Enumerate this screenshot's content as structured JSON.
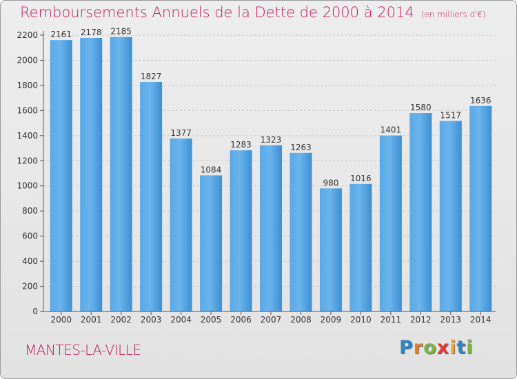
{
  "title": "Remboursements Annuels de la Dette de 2000 à 2014",
  "subtitle": "(en milliers d'€)",
  "city": "MANTES-LA-VILLE",
  "logo": {
    "letters": [
      "P",
      "r",
      "o",
      "x",
      "i",
      "t",
      "i"
    ],
    "colors": [
      "#2e86c1",
      "#e67e22",
      "#7cb342",
      "#e53935",
      "#f9a825",
      "#2e86c1",
      "#7cb342"
    ]
  },
  "colors": {
    "bar": "#3f92d6",
    "bar_light": "#6cb3ea",
    "title": "#c2185b",
    "grid": "#c8c8c8"
  },
  "chart_data": {
    "type": "bar",
    "categories": [
      "2000",
      "2001",
      "2002",
      "2003",
      "2004",
      "2005",
      "2006",
      "2007",
      "2008",
      "2009",
      "2010",
      "2011",
      "2012",
      "2013",
      "2014"
    ],
    "values": [
      2161,
      2178,
      2185,
      1827,
      1377,
      1084,
      1283,
      1323,
      1263,
      980,
      1016,
      1401,
      1580,
      1517,
      1636
    ],
    "ylim": [
      0,
      2200
    ],
    "yticks": [
      0,
      200,
      400,
      600,
      800,
      1000,
      1200,
      1400,
      1600,
      1800,
      2000,
      2200
    ],
    "grid": true,
    "legend": "none"
  }
}
